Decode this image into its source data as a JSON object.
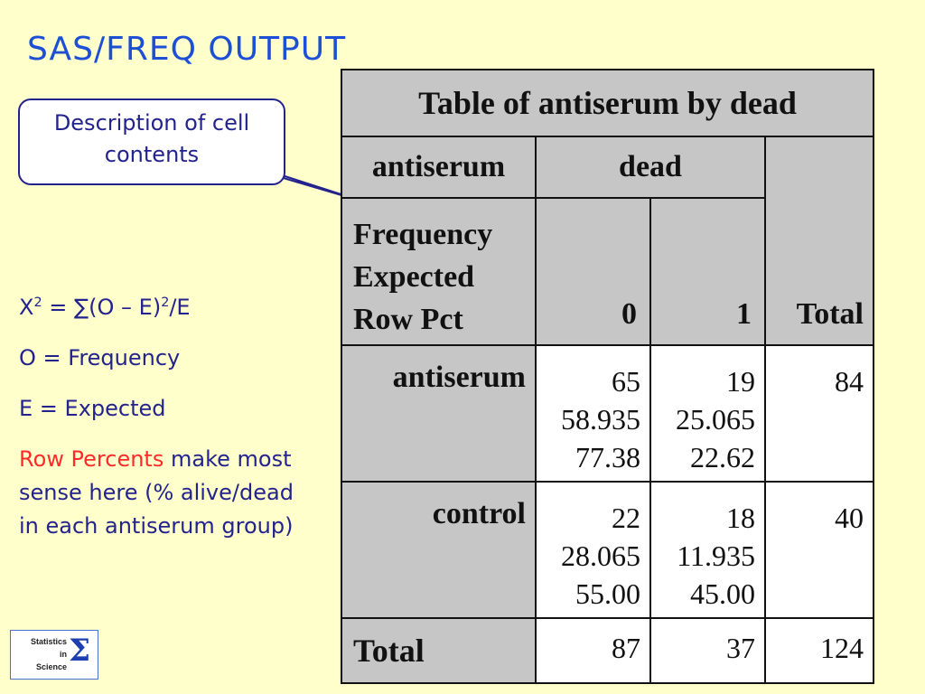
{
  "title": "SAS/FREQ OUTPUT",
  "callout": {
    "line1": "Description of cell",
    "line2": "contents"
  },
  "notes": {
    "formula_x": "X",
    "formula_sup1": "2",
    "formula_mid": " = ∑(O – E)",
    "formula_sup2": "2",
    "formula_end": "/E",
    "o_def": "O = Frequency",
    "e_def": "E = Expected",
    "row_pct_highlight": "Row Percents",
    "row_pct_rest": " make most sense here (% alive/dead in each antiserum group)"
  },
  "table": {
    "title": "Table of antiserum by dead",
    "row_var": "antiserum",
    "col_var": "dead",
    "legend": [
      "Frequency",
      "Expected",
      "Row Pct"
    ],
    "col_labels": [
      "0",
      "1"
    ],
    "total_label": "Total",
    "rows": [
      {
        "label": "antiserum",
        "cells": [
          {
            "freq": "65",
            "expected": "58.935",
            "row_pct": "77.38"
          },
          {
            "freq": "19",
            "expected": "25.065",
            "row_pct": "22.62"
          }
        ],
        "total": "84"
      },
      {
        "label": "control",
        "cells": [
          {
            "freq": "22",
            "expected": "28.065",
            "row_pct": "55.00"
          },
          {
            "freq": "18",
            "expected": "11.935",
            "row_pct": "45.00"
          }
        ],
        "total": "40"
      }
    ],
    "totals": {
      "label": "Total",
      "values": [
        "87",
        "37",
        "124"
      ]
    }
  },
  "logo": {
    "line1": "Statistics",
    "line2": "in",
    "line3": "Science",
    "symbol": "Σ"
  },
  "colors": {
    "background": "#ffffcc",
    "title": "#1c4fd6",
    "text": "#23238e",
    "highlight": "#ff2a2a",
    "table_header": "#c6c6c6"
  }
}
